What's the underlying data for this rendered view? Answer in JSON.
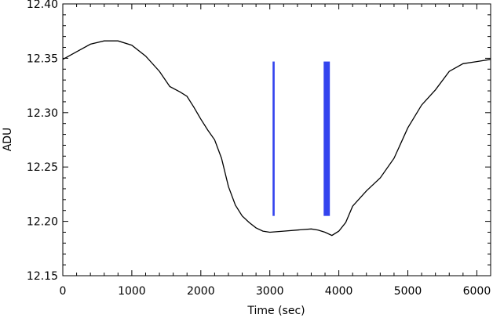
{
  "chart_data": {
    "type": "line",
    "title": "",
    "xlabel": "Time (sec)",
    "ylabel": "ADU",
    "xlim": [
      0,
      6200
    ],
    "ylim": [
      12.15,
      12.4
    ],
    "grid": false,
    "x_ticks": [
      0,
      1000,
      2000,
      3000,
      4000,
      5000,
      6000
    ],
    "x_tick_labels": [
      "0",
      "1000",
      "2000",
      "3000",
      "4000",
      "5000",
      "6000"
    ],
    "y_ticks": [
      12.15,
      12.2,
      12.25,
      12.3,
      12.35,
      12.4
    ],
    "y_tick_labels": [
      "12.15",
      "12.20",
      "12.25",
      "12.30",
      "12.35",
      "12.40"
    ],
    "colors": {
      "line": "#000000",
      "markers": "#3344ee"
    },
    "series": [
      {
        "x": [
          0,
          200,
          400,
          600,
          800,
          1000,
          1200,
          1400,
          1550,
          1700,
          1800,
          1900,
          2000,
          2100,
          2200,
          2300,
          2400,
          2500,
          2600,
          2700,
          2800,
          2900,
          3000,
          3200,
          3400,
          3600,
          3700,
          3800,
          3900,
          4000,
          4100,
          4200,
          4400,
          4600,
          4800,
          5000,
          5200,
          5400,
          5600,
          5800,
          6000,
          6200
        ],
        "y": [
          12.349,
          12.356,
          12.363,
          12.366,
          12.366,
          12.362,
          12.352,
          12.338,
          12.324,
          12.319,
          12.315,
          12.305,
          12.294,
          12.284,
          12.275,
          12.258,
          12.232,
          12.215,
          12.205,
          12.199,
          12.194,
          12.191,
          12.19,
          12.191,
          12.192,
          12.193,
          12.192,
          12.19,
          12.187,
          12.191,
          12.199,
          12.214,
          12.228,
          12.24,
          12.258,
          12.286,
          12.307,
          12.321,
          12.338,
          12.345,
          12.347,
          12.349
        ]
      }
    ],
    "bars": [
      {
        "x_start": 3040,
        "x_end": 3070,
        "y_bottom": 12.205,
        "y_top": 12.347
      },
      {
        "x_start": 3780,
        "x_end": 3870,
        "y_bottom": 12.205,
        "y_top": 12.347
      }
    ]
  }
}
